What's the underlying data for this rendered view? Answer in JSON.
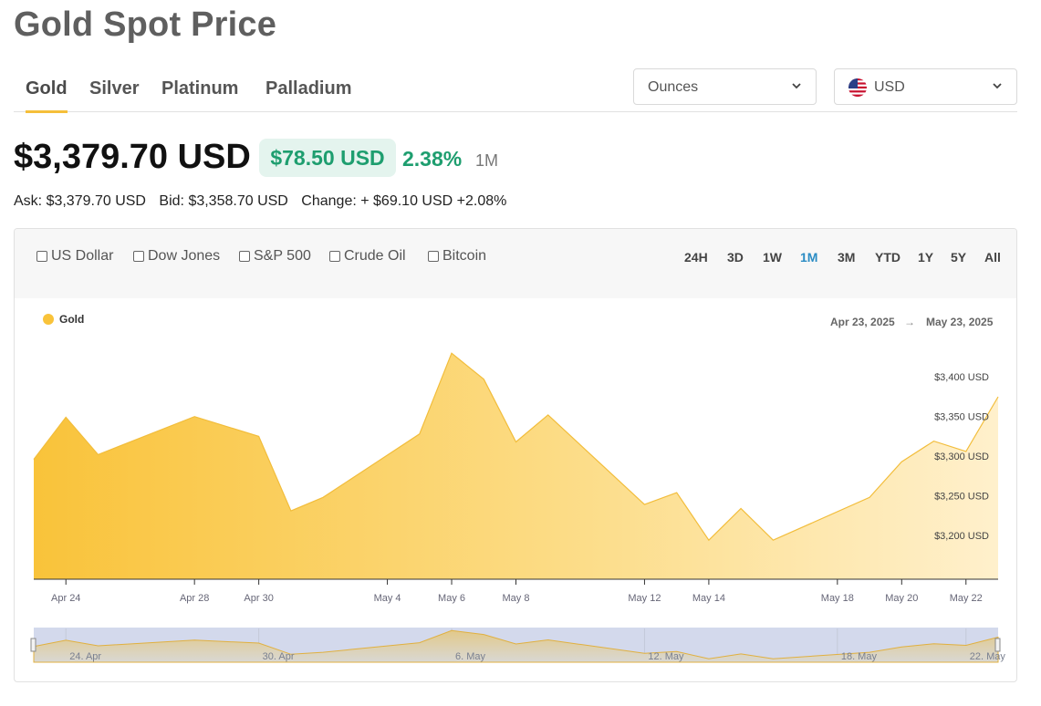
{
  "page": {
    "title": "Gold Spot Price"
  },
  "tabs": [
    {
      "label": "Gold",
      "active": true
    },
    {
      "label": "Silver",
      "active": false
    },
    {
      "label": "Platinum",
      "active": false
    },
    {
      "label": "Palladium",
      "active": false
    }
  ],
  "unit_select": {
    "value": "Ounces"
  },
  "currency_select": {
    "value": "USD",
    "flag": "us-flag-icon"
  },
  "quote": {
    "price": "$3,379.70 USD",
    "change": "$78.50 USD",
    "change_pct": "2.38%",
    "period": "1M",
    "ask": "Ask: $3,379.70 USD",
    "bid": "Bid: $3,358.70 USD",
    "change_line": "Change: + $69.10 USD +2.08%"
  },
  "colors": {
    "accent": "#f5bf3a",
    "positive": "#1e9e6f",
    "active_range": "#2b8cc4"
  },
  "comparisons": [
    "US Dollar",
    "Dow Jones",
    "S&P 500",
    "Crude Oil",
    "Bitcoin"
  ],
  "ranges": [
    "24H",
    "3D",
    "1W",
    "1M",
    "3M",
    "YTD",
    "1Y",
    "5Y",
    "All"
  ],
  "active_range": "1M",
  "chart_data": {
    "type": "area",
    "legend": "Gold",
    "date_start": "Apr 23, 2025",
    "date_arrow": "→",
    "date_end": "May 23, 2025",
    "x_ticks": [
      "Apr 24",
      "Apr 28",
      "Apr 30",
      "May 4",
      "May 6",
      "May 8",
      "May 12",
      "May 14",
      "May 18",
      "May 20",
      "May 22"
    ],
    "y_ticks": [
      "$3,200 USD",
      "$3,250 USD",
      "$3,300 USD",
      "$3,350 USD",
      "$3,400 USD"
    ],
    "y_tick_values": [
      3200,
      3250,
      3300,
      3350,
      3400
    ],
    "ylim": [
      3100,
      3400
    ],
    "series": [
      {
        "points": [
          [
            "Apr 23",
            3296
          ],
          [
            "Apr 24",
            3349
          ],
          [
            "Apr 25",
            3302
          ],
          [
            "Apr 28",
            3350
          ],
          [
            "Apr 30",
            3325
          ],
          [
            "May 1",
            3231
          ],
          [
            "May 2",
            3248
          ],
          [
            "May 5",
            3328
          ],
          [
            "May 6",
            3430
          ],
          [
            "May 7",
            3397
          ],
          [
            "May 8",
            3318
          ],
          [
            "May 9",
            3352
          ],
          [
            "May 12",
            3239
          ],
          [
            "May 13",
            3254
          ],
          [
            "May 14",
            3194
          ],
          [
            "May 15",
            3234
          ],
          [
            "May 16",
            3194
          ],
          [
            "May 19",
            3248
          ],
          [
            "May 20",
            3293
          ],
          [
            "May 21",
            3319
          ],
          [
            "May 22",
            3306
          ],
          [
            "May 23",
            3375
          ]
        ]
      }
    ],
    "navigator_labels": [
      "24. Apr",
      "30. Apr",
      "6. May",
      "12. May",
      "18. May",
      "22. May"
    ]
  }
}
